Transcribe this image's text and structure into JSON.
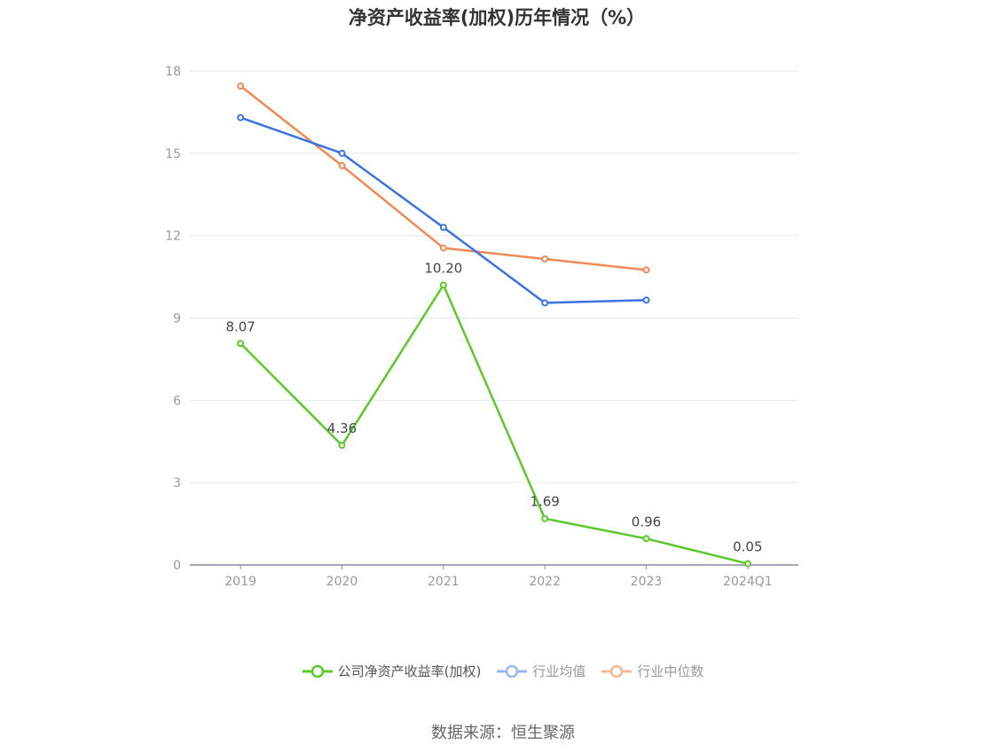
{
  "chart_data": {
    "type": "line",
    "title": "净资产收益率(加权)历年情况（%）",
    "categories": [
      "2019",
      "2020",
      "2021",
      "2022",
      "2023",
      "2024Q1"
    ],
    "ylim": [
      0,
      18
    ],
    "yticks": [
      0,
      3,
      6,
      9,
      12,
      15,
      18
    ],
    "grid": true,
    "legend_position": "bottom",
    "series": [
      {
        "name": "公司净资产收益率(加权)",
        "color": "#5cc92a",
        "values": [
          8.07,
          4.36,
          10.2,
          1.69,
          0.96,
          0.05
        ],
        "labels": [
          "8.07",
          "4.36",
          "10.20",
          "1.69",
          "0.96",
          "0.05"
        ]
      },
      {
        "name": "行业均值",
        "color": "#3b73e0",
        "values": [
          16.3,
          15.0,
          12.3,
          9.55,
          9.65,
          null
        ]
      },
      {
        "name": "行业中位数",
        "color": "#f08a55",
        "values": [
          17.45,
          14.55,
          11.55,
          11.15,
          10.75,
          null
        ]
      }
    ]
  },
  "legend": {
    "items": [
      {
        "label": "公司净资产收益率(加权)",
        "swatch_color": "#5cc92a"
      },
      {
        "label": "行业均值",
        "swatch_color": "#9bb8ee"
      },
      {
        "label": "行业中位数",
        "swatch_color": "#f6b698"
      }
    ]
  },
  "source": "数据来源：恒生聚源"
}
